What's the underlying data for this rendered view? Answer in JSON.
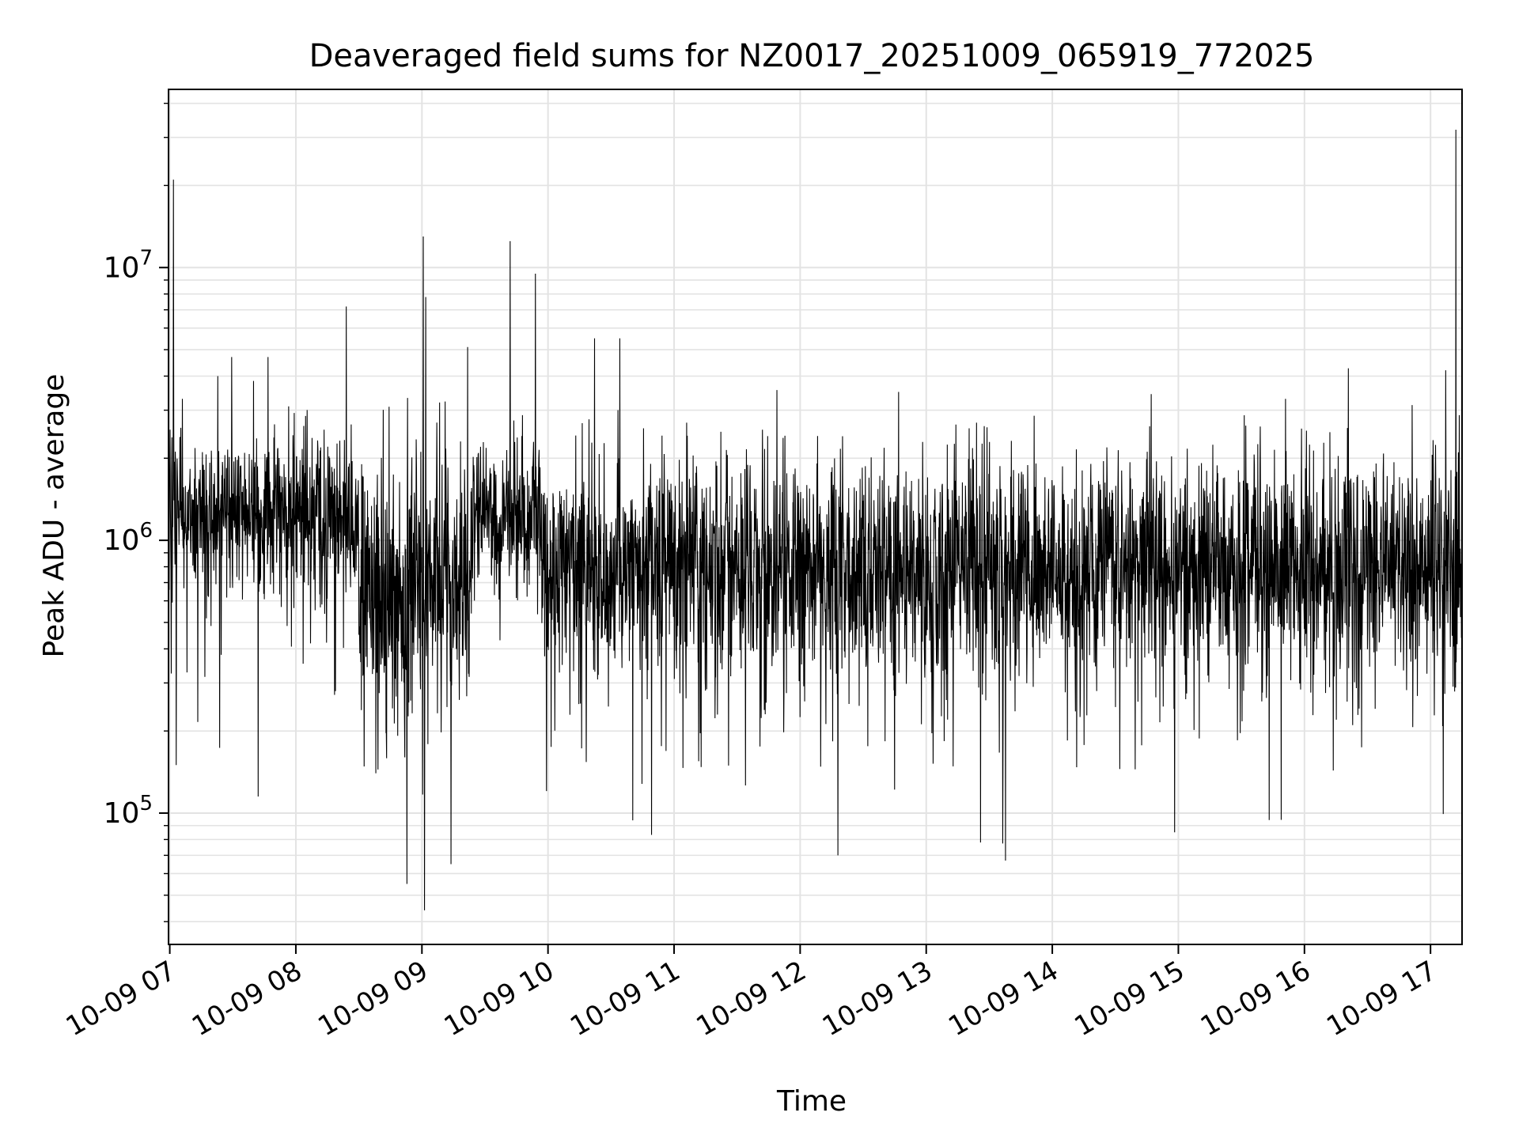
{
  "chart_data": {
    "type": "line",
    "title": "Deaveraged field sums for NZ0017_20251009_065919_772025",
    "xlabel": "Time",
    "ylabel": "Peak ADU - average",
    "yscale": "log",
    "ylim": [
      33000,
      45000000
    ],
    "xlim_hours": [
      6.99,
      17.25
    ],
    "grid": true,
    "line_color": "#000000",
    "x_ticks": [
      {
        "hour": 7,
        "label": "10-09 07"
      },
      {
        "hour": 8,
        "label": "10-09 08"
      },
      {
        "hour": 9,
        "label": "10-09 09"
      },
      {
        "hour": 10,
        "label": "10-09 10"
      },
      {
        "hour": 11,
        "label": "10-09 11"
      },
      {
        "hour": 12,
        "label": "10-09 12"
      },
      {
        "hour": 13,
        "label": "10-09 13"
      },
      {
        "hour": 14,
        "label": "10-09 14"
      },
      {
        "hour": 15,
        "label": "10-09 15"
      },
      {
        "hour": 16,
        "label": "10-09 16"
      },
      {
        "hour": 17,
        "label": "10-09 17"
      }
    ],
    "y_ticks": [
      {
        "value": 100000,
        "base": "10",
        "exp": "5"
      },
      {
        "value": 1000000,
        "base": "10",
        "exp": "6"
      },
      {
        "value": 10000000,
        "base": "10",
        "exp": "7"
      }
    ],
    "baseline_segments": [
      {
        "from_hour": 6.99,
        "to_hour": 8.5,
        "median": 1250000,
        "spread": 0.35
      },
      {
        "from_hour": 8.5,
        "to_hour": 9.4,
        "median": 700000,
        "spread": 0.6
      },
      {
        "from_hour": 9.4,
        "to_hour": 9.95,
        "median": 1250000,
        "spread": 0.35
      },
      {
        "from_hour": 9.95,
        "to_hour": 17.25,
        "median": 800000,
        "spread": 0.5
      }
    ],
    "sample_count": 4200,
    "spikes": [
      {
        "hour": 7.03,
        "value": 21000000
      },
      {
        "hour": 7.05,
        "value": 150000
      },
      {
        "hour": 7.1,
        "value": 3300000
      },
      {
        "hour": 7.38,
        "value": 4000000
      },
      {
        "hour": 7.49,
        "value": 4700000
      },
      {
        "hour": 7.7,
        "value": 115000
      },
      {
        "hour": 7.78,
        "value": 4700000
      },
      {
        "hour": 8.4,
        "value": 7200000
      },
      {
        "hour": 8.88,
        "value": 55000
      },
      {
        "hour": 9.01,
        "value": 13000000
      },
      {
        "hour": 9.03,
        "value": 7800000
      },
      {
        "hour": 9.02,
        "value": 44000
      },
      {
        "hour": 9.23,
        "value": 65000
      },
      {
        "hour": 9.7,
        "value": 12500000
      },
      {
        "hour": 9.9,
        "value": 9500000
      },
      {
        "hour": 10.37,
        "value": 5500000
      },
      {
        "hour": 10.57,
        "value": 5500000
      },
      {
        "hour": 11.1,
        "value": 2700000
      },
      {
        "hour": 11.37,
        "value": 2500000
      },
      {
        "hour": 12.3,
        "value": 70000
      },
      {
        "hour": 12.78,
        "value": 3500000
      },
      {
        "hour": 13.4,
        "value": 2700000
      },
      {
        "hour": 13.43,
        "value": 78000
      },
      {
        "hour": 13.63,
        "value": 67000
      },
      {
        "hour": 14.97,
        "value": 85000
      },
      {
        "hour": 15.85,
        "value": 3300000
      },
      {
        "hour": 17.2,
        "value": 32000000
      },
      {
        "hour": 17.12,
        "value": 4200000
      }
    ]
  }
}
